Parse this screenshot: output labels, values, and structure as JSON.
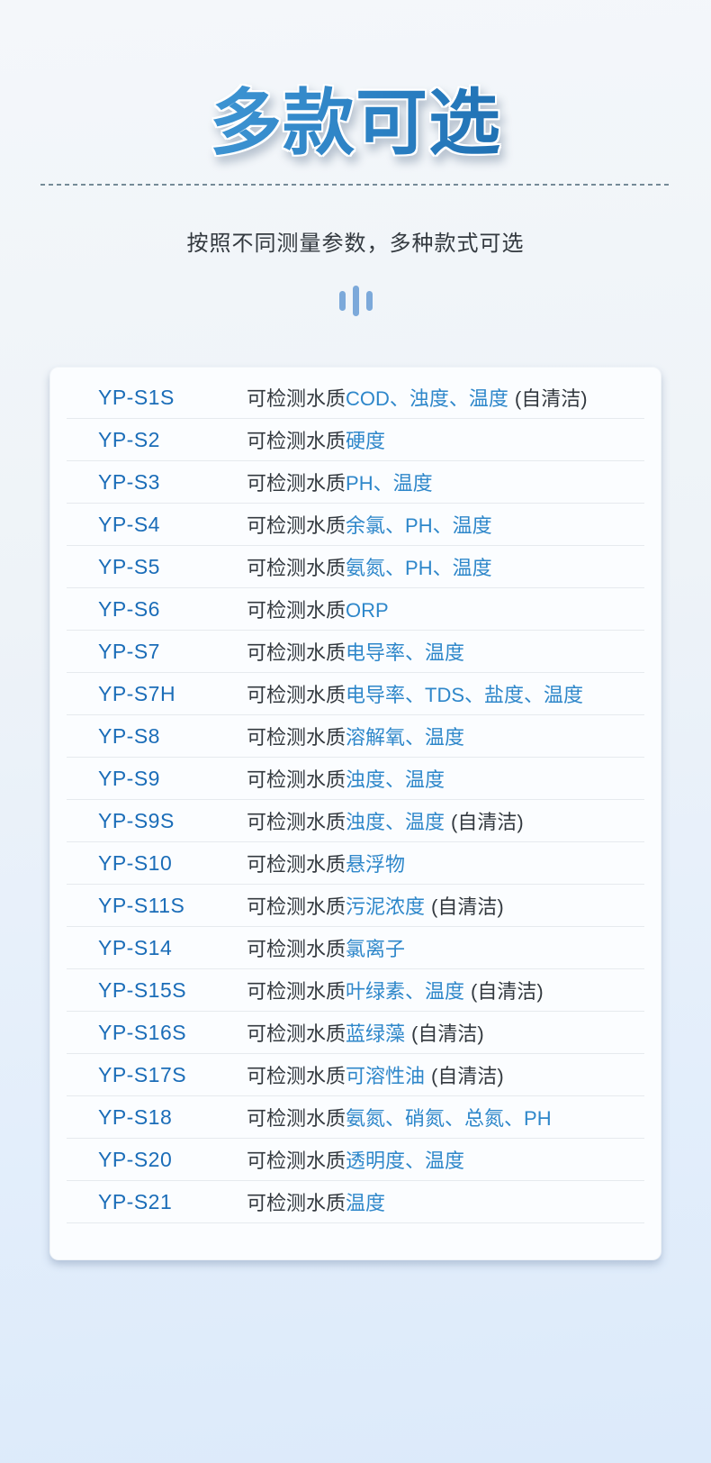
{
  "header": {
    "title": "多款可选",
    "subtitle": "按照不同测量参数，多种款式可选"
  },
  "table": {
    "desc_prefix": "可检测水质",
    "self_clean_suffix": "(自清洁)",
    "rows": [
      {
        "model": "YP-S1S",
        "params": "COD、浊度、温度",
        "self_clean": true
      },
      {
        "model": "YP-S2",
        "params": "硬度",
        "self_clean": false
      },
      {
        "model": "YP-S3",
        "params": "PH、温度",
        "self_clean": false
      },
      {
        "model": "YP-S4",
        "params": "余氯、PH、温度",
        "self_clean": false
      },
      {
        "model": "YP-S5",
        "params": "氨氮、PH、温度",
        "self_clean": false
      },
      {
        "model": "YP-S6",
        "params": "ORP",
        "self_clean": false
      },
      {
        "model": "YP-S7",
        "params": "电导率、温度",
        "self_clean": false
      },
      {
        "model": "YP-S7H",
        "params": "电导率、TDS、盐度、温度",
        "self_clean": false
      },
      {
        "model": "YP-S8",
        "params": "溶解氧、温度",
        "self_clean": false
      },
      {
        "model": "YP-S9",
        "params": "浊度、温度",
        "self_clean": false
      },
      {
        "model": "YP-S9S",
        "params": "浊度、温度",
        "self_clean": true
      },
      {
        "model": "YP-S10",
        "params": "悬浮物",
        "self_clean": false
      },
      {
        "model": "YP-S11S",
        "params": "污泥浓度",
        "self_clean": true
      },
      {
        "model": "YP-S14",
        "params": "氯离子",
        "self_clean": false
      },
      {
        "model": "YP-S15S",
        "params": "叶绿素、温度",
        "self_clean": true
      },
      {
        "model": "YP-S16S",
        "params": "蓝绿藻",
        "self_clean": true
      },
      {
        "model": "YP-S17S",
        "params": "可溶性油",
        "self_clean": true
      },
      {
        "model": "YP-S18",
        "params": "氨氮、硝氮、总氮、PH",
        "self_clean": false
      },
      {
        "model": "YP-S20",
        "params": "透明度、温度",
        "self_clean": false
      },
      {
        "model": "YP-S21",
        "params": "温度",
        "self_clean": false
      }
    ]
  },
  "colors": {
    "title_gradient_from": "#4ba3de",
    "title_gradient_to": "#135e9f",
    "model_name_blue": "#1b6db8",
    "param_blue": "#2e87ca",
    "text_dark": "#33393f",
    "bars_icon_blue": "#7ca9da",
    "card_background": "#fbfdff",
    "row_divider": "#e6eaee",
    "page_background_top": "#f4f7fa",
    "page_background_bottom": "#dceafa"
  }
}
